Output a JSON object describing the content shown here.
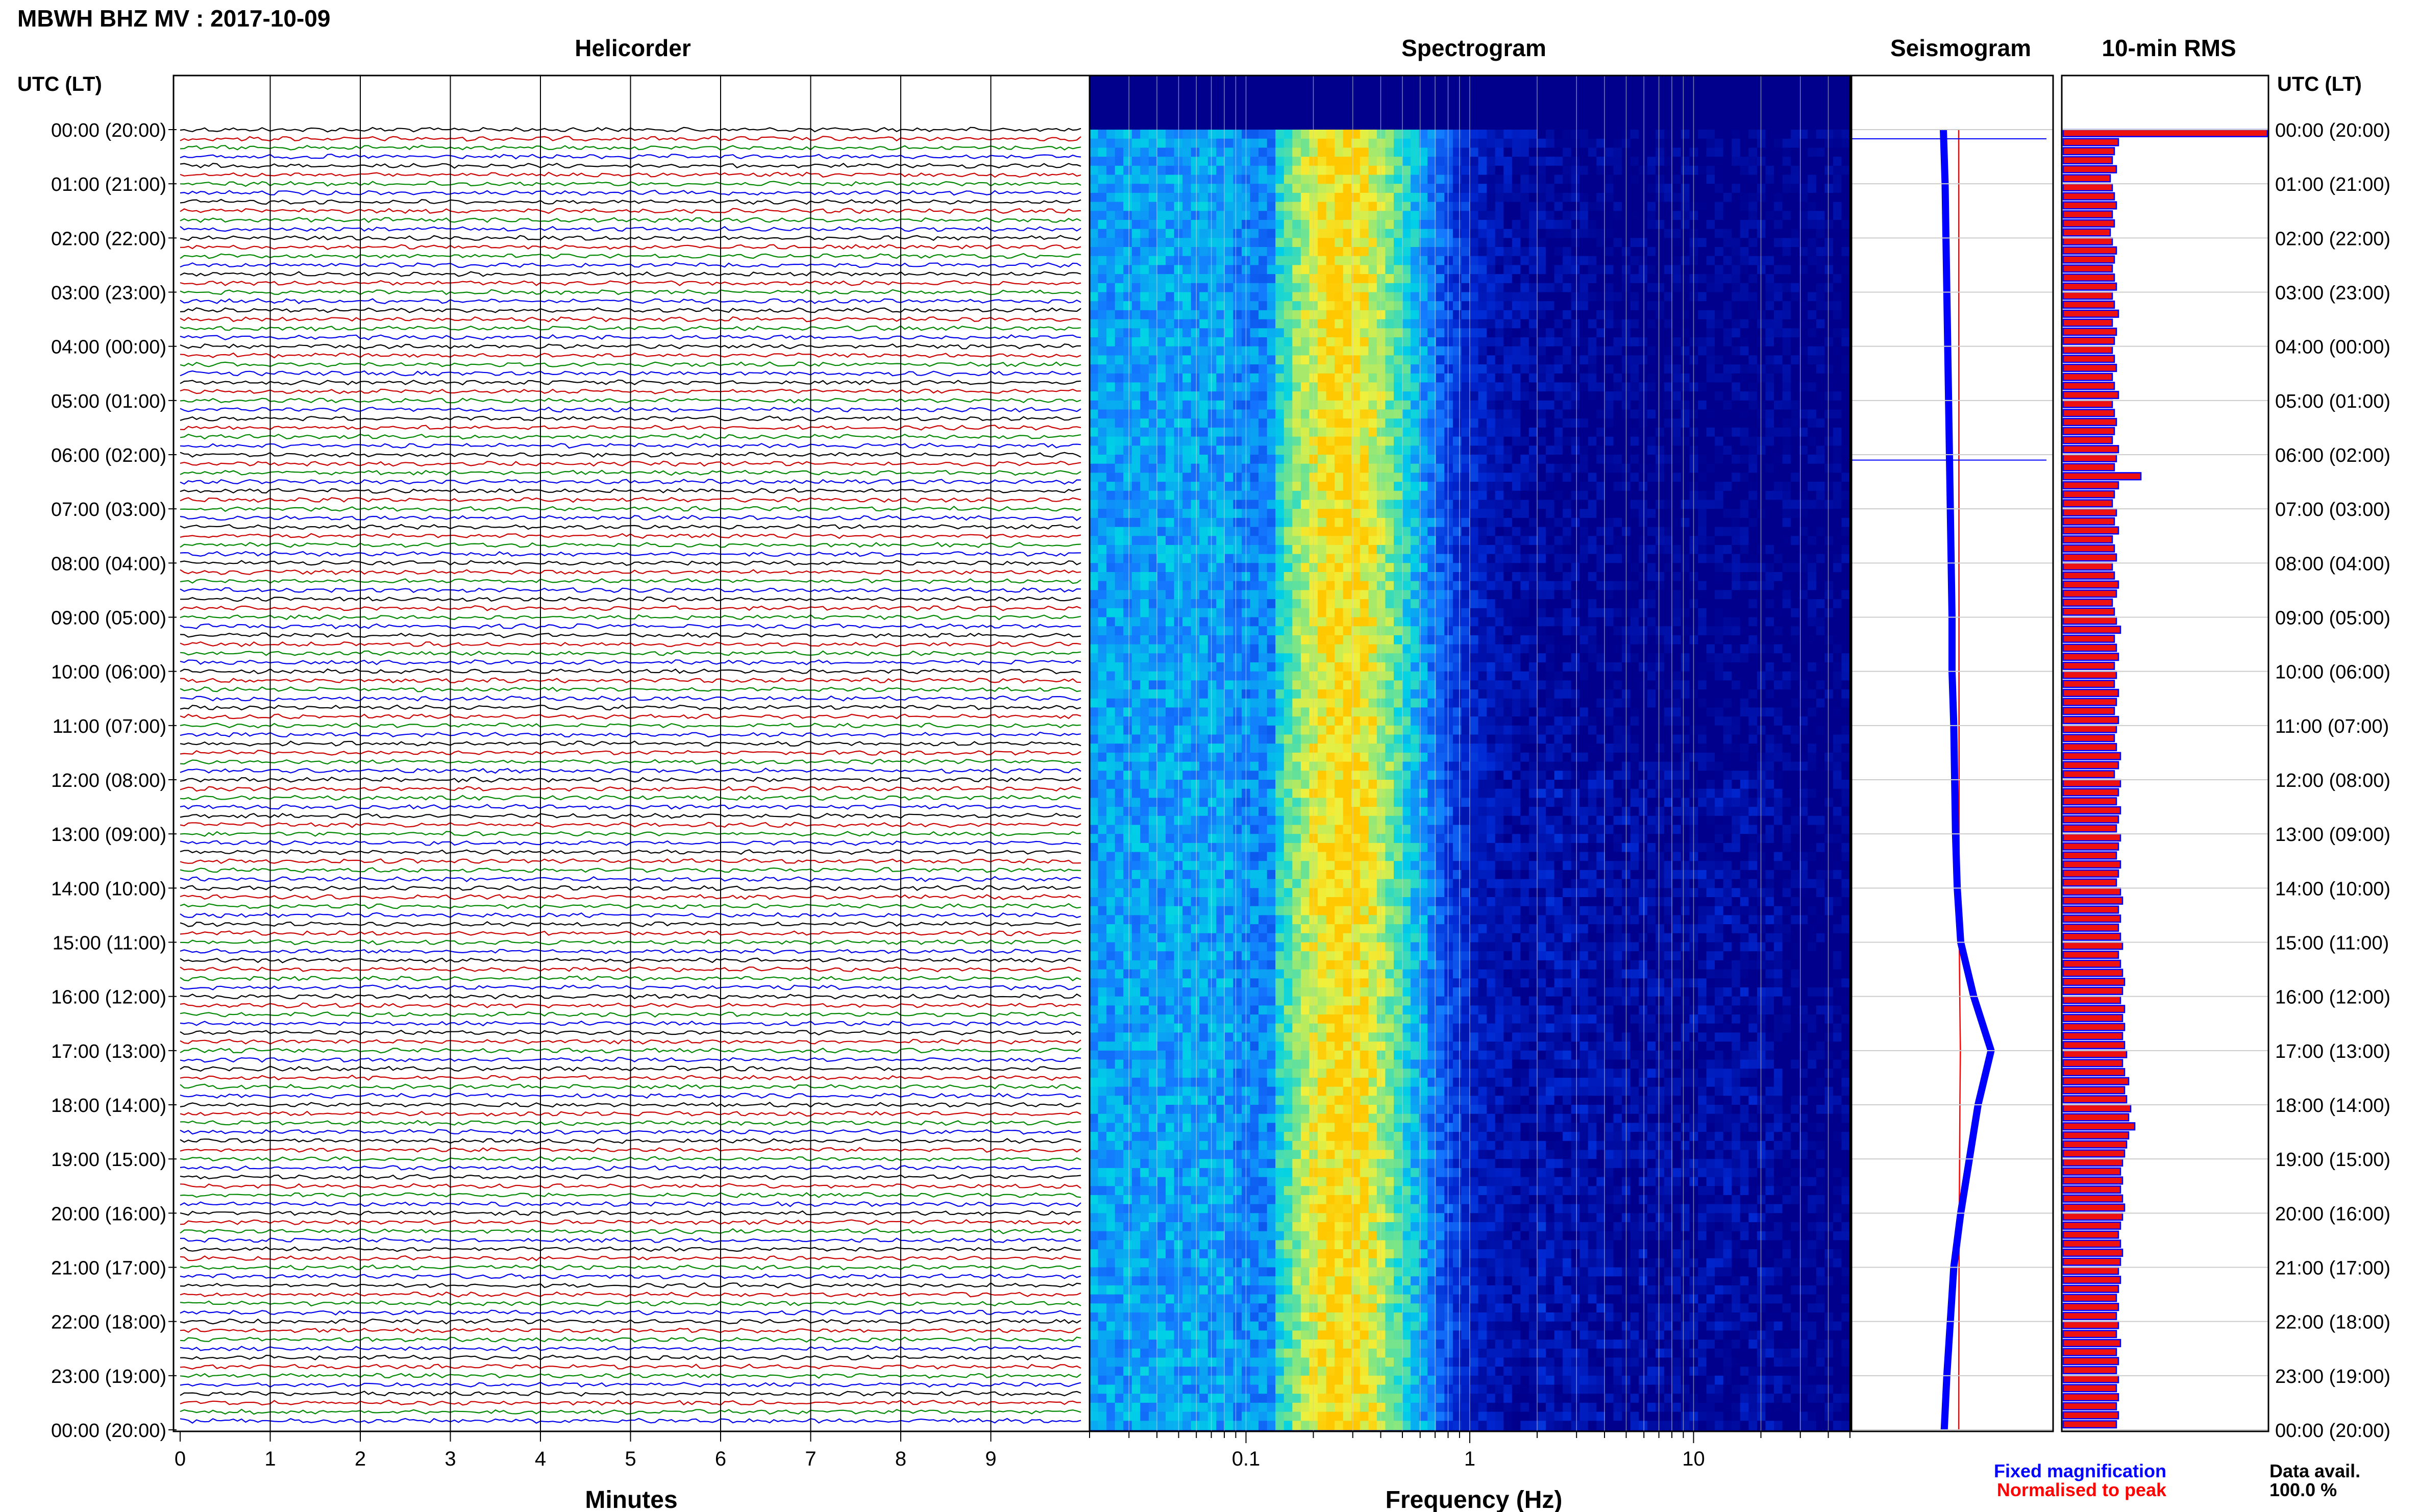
{
  "figure": {
    "title": "MBWH BHZ MV : 2017-10-09",
    "panels": {
      "helicorder": "Helicorder",
      "spectrogram": "Spectrogram",
      "seismogram": "Seismogram",
      "rms": "10-min RMS"
    },
    "left_axis_title": "UTC (LT)",
    "right_axis_title": "UTC (LT)",
    "footer": {
      "fixed_magnification": "Fixed magnification",
      "normalised_to_peak": "Normalised to peak",
      "data_avail_label": "Data avail.",
      "data_avail_value": "100.0 %"
    },
    "colors": {
      "trace_cycle": [
        "#000000",
        "#cc0000",
        "#008800",
        "#0000ee"
      ],
      "fixed_magnification": "#0000ff",
      "normalised_to_peak": "#ff0000",
      "rms_bar_fill": "#ee1111",
      "rms_bar_edge": "#0000ff"
    }
  },
  "chart_data": [
    {
      "type": "line",
      "panel": "Helicorder",
      "xlabel": "Minutes",
      "x_ticks": [
        "0",
        "1",
        "2",
        "3",
        "4",
        "5",
        "6",
        "7",
        "8",
        "9"
      ],
      "xlim": [
        0,
        10
      ],
      "time_labels": [
        "00:00 (20:00)",
        "01:00 (21:00)",
        "02:00 (22:00)",
        "03:00 (23:00)",
        "04:00 (00:00)",
        "05:00 (01:00)",
        "06:00 (02:00)",
        "07:00 (03:00)",
        "08:00 (04:00)",
        "09:00 (05:00)",
        "10:00 (06:00)",
        "11:00 (07:00)",
        "12:00 (08:00)",
        "13:00 (09:00)",
        "14:00 (10:00)",
        "15:00 (11:00)",
        "16:00 (12:00)",
        "17:00 (13:00)",
        "18:00 (14:00)",
        "19:00 (15:00)",
        "20:00 (16:00)",
        "21:00 (17:00)",
        "22:00 (18:00)",
        "23:00 (19:00)",
        "00:00 (20:00)"
      ],
      "traces_per_hour": 6,
      "trace_minutes": 10
    },
    {
      "type": "heatmap",
      "panel": "Spectrogram",
      "xlabel": "Frequency (Hz)",
      "x_scale": "log",
      "xlim": [
        0.02,
        50
      ],
      "x_ticks": [
        "0.1",
        "1",
        "10"
      ],
      "colormap": "blue-cyan-yellow (jet)",
      "peak_band_hz": [
        0.15,
        0.5
      ]
    },
    {
      "type": "line",
      "panel": "Seismogram",
      "series": [
        {
          "name": "Fixed magnification",
          "color": "#0000ff"
        },
        {
          "name": "Normalised to peak",
          "color": "#ff0000"
        }
      ],
      "hour_x": [
        0,
        0.02,
        0.03,
        0.04,
        0.05,
        0.06,
        0.07,
        0.08,
        0.09,
        0.1,
        0.1,
        0.12,
        0.13,
        0.14,
        0.16,
        0.2,
        0.35,
        0.55,
        0.4,
        0.3,
        0.2,
        0.12,
        0.08,
        0.04,
        0.01
      ]
    },
    {
      "type": "bar",
      "panel": "10-min RMS",
      "orientation": "horizontal",
      "values": [
        1.0,
        0.27,
        0.25,
        0.24,
        0.26,
        0.23,
        0.24,
        0.25,
        0.26,
        0.24,
        0.25,
        0.23,
        0.24,
        0.26,
        0.25,
        0.24,
        0.25,
        0.26,
        0.24,
        0.25,
        0.27,
        0.24,
        0.26,
        0.25,
        0.24,
        0.25,
        0.26,
        0.24,
        0.25,
        0.27,
        0.24,
        0.25,
        0.26,
        0.25,
        0.24,
        0.27,
        0.26,
        0.25,
        0.38,
        0.27,
        0.25,
        0.24,
        0.26,
        0.25,
        0.27,
        0.24,
        0.25,
        0.26,
        0.24,
        0.25,
        0.27,
        0.26,
        0.24,
        0.25,
        0.26,
        0.28,
        0.25,
        0.26,
        0.27,
        0.25,
        0.26,
        0.25,
        0.27,
        0.26,
        0.25,
        0.27,
        0.26,
        0.25,
        0.26,
        0.28,
        0.27,
        0.25,
        0.28,
        0.27,
        0.26,
        0.28,
        0.27,
        0.26,
        0.28,
        0.27,
        0.26,
        0.28,
        0.27,
        0.26,
        0.28,
        0.29,
        0.27,
        0.28,
        0.27,
        0.28,
        0.29,
        0.27,
        0.28,
        0.29,
        0.3,
        0.29,
        0.28,
        0.3,
        0.29,
        0.3,
        0.29,
        0.3,
        0.31,
        0.29,
        0.3,
        0.32,
        0.3,
        0.31,
        0.33,
        0.32,
        0.35,
        0.32,
        0.31,
        0.3,
        0.29,
        0.28,
        0.29,
        0.28,
        0.29,
        0.3,
        0.29,
        0.28,
        0.27,
        0.28,
        0.29,
        0.28,
        0.27,
        0.28,
        0.27,
        0.26,
        0.27,
        0.26,
        0.27,
        0.26,
        0.28,
        0.26,
        0.27,
        0.26,
        0.27,
        0.26,
        0.27,
        0.26,
        0.27,
        0.26
      ]
    }
  ]
}
